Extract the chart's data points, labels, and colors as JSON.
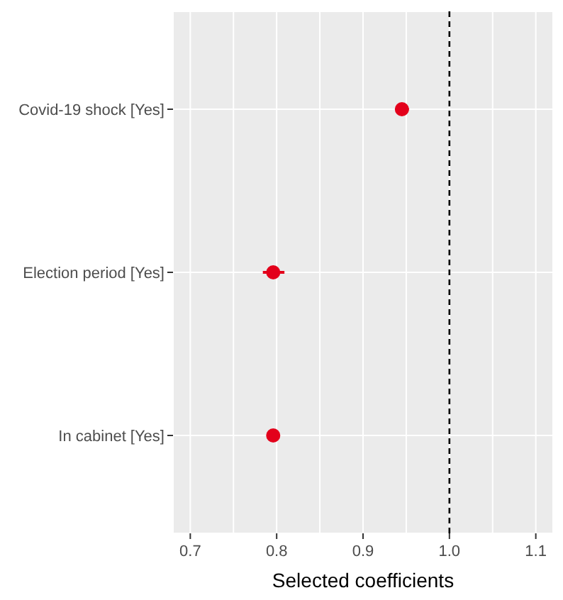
{
  "chart_data": {
    "type": "scatter",
    "orientation": "horizontal",
    "xlabel": "Selected coefficients",
    "categories": [
      "Covid-19 shock [Yes]",
      "Election period [Yes]",
      "In cabinet [Yes]"
    ],
    "values": [
      0.945,
      0.796,
      0.796
    ],
    "errors": [
      [
        0.94,
        0.953
      ],
      [
        0.784,
        0.809
      ],
      null
    ],
    "color": "#e3001b",
    "marker": "circle",
    "xlim": [
      0.68,
      1.12
    ],
    "xticks": [
      0.7,
      {
        "value": 0.75,
        "label": null
      },
      0.8,
      {
        "value": 0.85,
        "label": null
      },
      0.9,
      {
        "value": 0.95,
        "label": null
      },
      {
        "value": 1.0,
        "label": "1.0"
      },
      {
        "value": 1.05,
        "label": null
      },
      1.1
    ],
    "ref_lines": [
      {
        "axis": "x",
        "value": 1.0,
        "color": "#000000",
        "line_style": "dashed"
      }
    ],
    "grid": true
  }
}
